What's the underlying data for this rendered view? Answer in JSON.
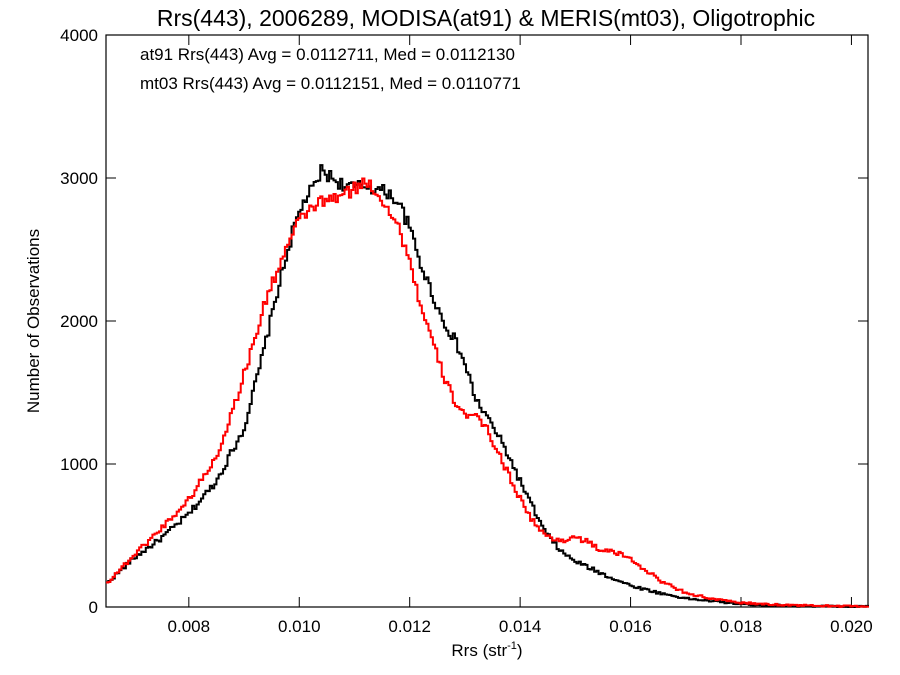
{
  "chart_data": {
    "type": "line",
    "title": "Rrs(443), 2006289, MODISA(at91) & MERIS(mt03), Oligotrophic",
    "xlabel": "Rrs (str",
    "xlabel_sup": "-1",
    "xlabel_close": ")",
    "ylabel": "Number of Observations",
    "xlim": [
      0.0065,
      0.0203
    ],
    "ylim": [
      0,
      4000
    ],
    "x_ticks": [
      0.008,
      0.01,
      0.012,
      0.014,
      0.016,
      0.018,
      0.02
    ],
    "x_tick_labels": [
      "0.008",
      "0.010",
      "0.012",
      "0.014",
      "0.016",
      "0.018",
      "0.020"
    ],
    "y_ticks": [
      0,
      1000,
      2000,
      3000,
      4000
    ],
    "y_tick_labels": [
      "0",
      "1000",
      "2000",
      "3000",
      "4000"
    ],
    "step": "histogram",
    "grid": false,
    "annotations": [
      {
        "text": "at91 Rrs(443) Avg = 0.0112711, Med = 0.0112130",
        "color": "#000000"
      },
      {
        "text": "mt03 Rrs(443) Avg = 0.0112151, Med = 0.0110771",
        "color": "#ff0000"
      }
    ],
    "series": [
      {
        "color": "#000000",
        "x": [
          0.0065,
          0.007,
          0.0075,
          0.008,
          0.0085,
          0.009,
          0.0093,
          0.0096,
          0.0099,
          0.0101,
          0.0103,
          0.0104,
          0.0106,
          0.0108,
          0.011,
          0.0112,
          0.0114,
          0.0116,
          0.0118,
          0.012,
          0.0122,
          0.0124,
          0.0126,
          0.0128,
          0.013,
          0.0132,
          0.0134,
          0.0136,
          0.0138,
          0.014,
          0.0142,
          0.0144,
          0.0146,
          0.0148,
          0.015,
          0.0155,
          0.016,
          0.0165,
          0.017,
          0.0175,
          0.018,
          0.0185,
          0.019,
          0.0195,
          0.02
        ],
        "y": [
          160,
          340,
          480,
          650,
          880,
          1250,
          1700,
          2200,
          2650,
          2850,
          2950,
          3050,
          3000,
          2950,
          2930,
          2950,
          2920,
          2900,
          2830,
          2650,
          2400,
          2200,
          2000,
          1880,
          1700,
          1450,
          1330,
          1200,
          1050,
          880,
          720,
          560,
          450,
          370,
          320,
          230,
          150,
          100,
          60,
          40,
          20,
          12,
          8,
          5,
          3
        ]
      },
      {
        "color": "#ff0000",
        "x": [
          0.0065,
          0.007,
          0.0075,
          0.008,
          0.0085,
          0.0088,
          0.0091,
          0.0094,
          0.0097,
          0.01,
          0.0103,
          0.0106,
          0.0109,
          0.0111,
          0.0112,
          0.0113,
          0.0114,
          0.0116,
          0.0118,
          0.012,
          0.0122,
          0.0124,
          0.0126,
          0.0128,
          0.013,
          0.0132,
          0.0134,
          0.0136,
          0.0138,
          0.014,
          0.0142,
          0.0144,
          0.0146,
          0.0148,
          0.015,
          0.0152,
          0.0154,
          0.0156,
          0.0158,
          0.016,
          0.0163,
          0.0166,
          0.017,
          0.0175,
          0.018,
          0.0185,
          0.019,
          0.0195,
          0.02
        ],
        "y": [
          160,
          360,
          550,
          750,
          1050,
          1380,
          1750,
          2150,
          2450,
          2700,
          2820,
          2850,
          2900,
          2950,
          2970,
          2950,
          2900,
          2800,
          2650,
          2430,
          2100,
          1870,
          1630,
          1450,
          1350,
          1320,
          1250,
          1080,
          920,
          760,
          620,
          520,
          470,
          470,
          490,
          460,
          410,
          390,
          370,
          340,
          250,
          170,
          100,
          55,
          30,
          18,
          12,
          8,
          5
        ]
      }
    ]
  }
}
